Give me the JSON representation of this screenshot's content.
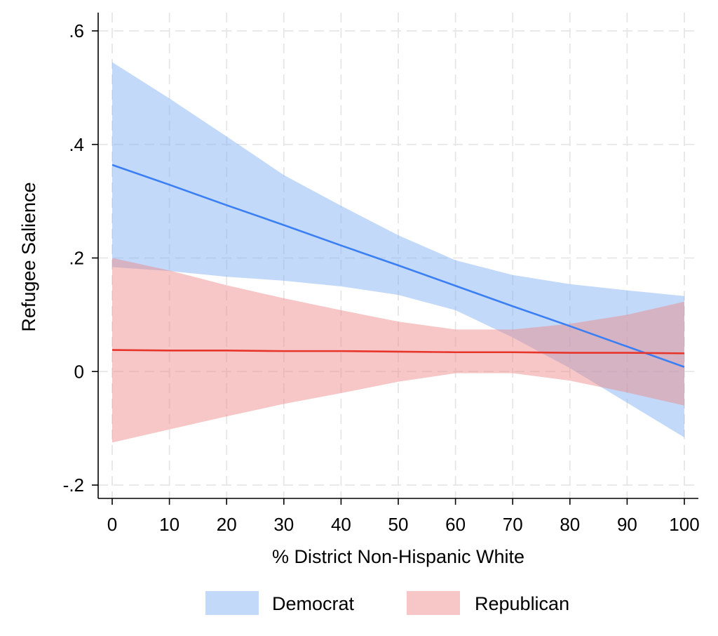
{
  "chart_data": {
    "type": "line",
    "xlabel": "% District Non-Hispanic White",
    "ylabel": "Refugee Salience",
    "xlim": [
      0,
      100
    ],
    "ylim": [
      -0.2,
      0.6
    ],
    "x_ticks": [
      0,
      10,
      20,
      30,
      40,
      50,
      60,
      70,
      80,
      90,
      100
    ],
    "x_tick_labels": [
      "0",
      "10",
      "20",
      "30",
      "40",
      "50",
      "60",
      "70",
      "80",
      "90",
      "100"
    ],
    "y_ticks": [
      -0.2,
      0,
      0.2,
      0.4,
      0.6
    ],
    "y_tick_labels": [
      "-.2",
      "0",
      ".2",
      ".4",
      ".6"
    ],
    "grid": true,
    "legend_position": "bottom",
    "series": [
      {
        "name": "Democrat",
        "line_color": "#3b7ff5",
        "band_color": "#7fb0f5",
        "x": [
          0,
          10,
          20,
          30,
          40,
          50,
          60,
          70,
          80,
          90,
          100
        ],
        "y": [
          0.364,
          0.329,
          0.293,
          0.258,
          0.222,
          0.187,
          0.151,
          0.115,
          0.08,
          0.044,
          0.008
        ],
        "lower": [
          0.184,
          0.177,
          0.167,
          0.16,
          0.15,
          0.135,
          0.108,
          0.06,
          0.006,
          -0.055,
          -0.116
        ],
        "upper": [
          0.545,
          0.481,
          0.414,
          0.346,
          0.292,
          0.24,
          0.196,
          0.17,
          0.154,
          0.143,
          0.133
        ]
      },
      {
        "name": "Republican",
        "line_color": "#e8352b",
        "band_color": "#ec8a88",
        "x": [
          0,
          10,
          20,
          30,
          40,
          50,
          60,
          70,
          80,
          90,
          100
        ],
        "y": [
          0.038,
          0.037,
          0.037,
          0.036,
          0.036,
          0.035,
          0.034,
          0.034,
          0.033,
          0.033,
          0.032
        ],
        "lower": [
          -0.125,
          -0.102,
          -0.079,
          -0.057,
          -0.038,
          -0.018,
          -0.003,
          -0.003,
          -0.016,
          -0.037,
          -0.06
        ],
        "upper": [
          0.2,
          0.178,
          0.152,
          0.129,
          0.108,
          0.088,
          0.074,
          0.074,
          0.084,
          0.1,
          0.123
        ]
      }
    ]
  }
}
